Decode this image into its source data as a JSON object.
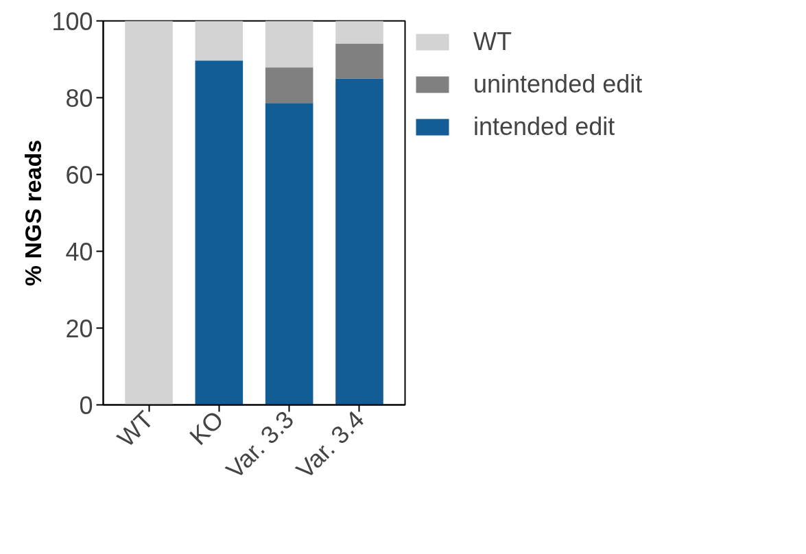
{
  "chart_data": {
    "type": "bar",
    "stacked": true,
    "ylabel": "% NGS reads",
    "categories": [
      "WT",
      "KO",
      "Var. 3.3",
      "Var. 3.4"
    ],
    "series": [
      {
        "name": "intended edit",
        "color": "#135d97",
        "values": [
          0,
          89.7,
          78.6,
          85.0
        ]
      },
      {
        "name": "unintended edit",
        "color": "#808080",
        "values": [
          0,
          0,
          9.3,
          9.1
        ]
      },
      {
        "name": "WT",
        "color": "#d3d3d3",
        "values": [
          100,
          10.3,
          12.1,
          5.9
        ]
      }
    ],
    "ylim": [
      0,
      100
    ],
    "yticks": [
      0,
      20,
      40,
      60,
      80,
      100
    ],
    "grid": false,
    "legend": "top right"
  }
}
